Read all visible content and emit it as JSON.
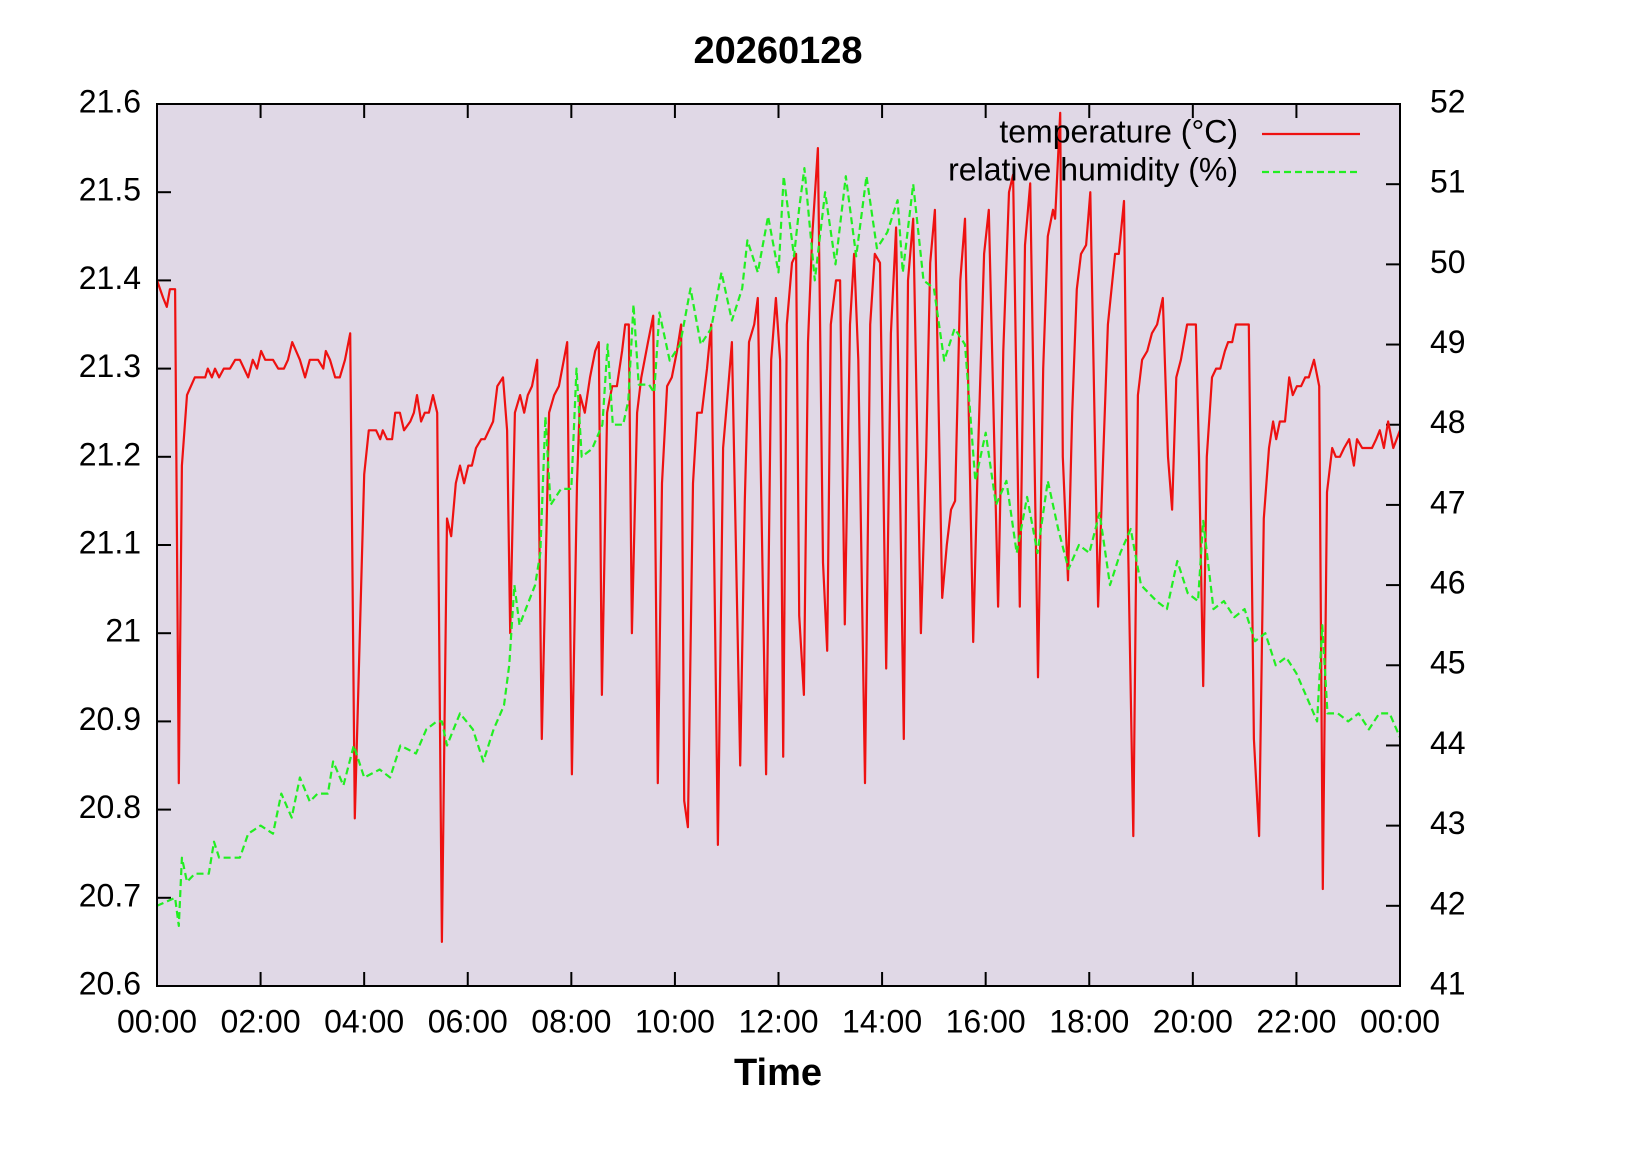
{
  "chart_data": {
    "type": "line",
    "title": "20260128",
    "x_label": "Time",
    "xlim": [
      0,
      24
    ],
    "xticks": [
      {
        "value": 0,
        "label": "00:00"
      },
      {
        "value": 2,
        "label": "02:00"
      },
      {
        "value": 4,
        "label": "04:00"
      },
      {
        "value": 6,
        "label": "06:00"
      },
      {
        "value": 8,
        "label": "08:00"
      },
      {
        "value": 10,
        "label": "10:00"
      },
      {
        "value": 12,
        "label": "12:00"
      },
      {
        "value": 14,
        "label": "14:00"
      },
      {
        "value": 16,
        "label": "16:00"
      },
      {
        "value": 18,
        "label": "18:00"
      },
      {
        "value": 20,
        "label": "20:00"
      },
      {
        "value": 22,
        "label": "22:00"
      },
      {
        "value": 24,
        "label": "00:00"
      }
    ],
    "ylim": [
      20.6,
      21.6
    ],
    "yticks": [
      20.6,
      20.7,
      20.8,
      20.9,
      21,
      21.1,
      21.2,
      21.3,
      21.4,
      21.5,
      21.6
    ],
    "y2lim": [
      41,
      52
    ],
    "y2ticks": [
      41,
      42,
      43,
      44,
      45,
      46,
      47,
      48,
      49,
      50,
      51,
      52
    ],
    "legend": "upper right",
    "background": "#e0d8e6",
    "series": [
      {
        "name": "temperature (°C)",
        "color": "#ee1111",
        "dash": false,
        "axis": "y",
        "x": [
          0,
          0.12,
          0.19,
          0.25,
          0.35,
          0.42,
          0.48,
          0.58,
          0.73,
          0.93,
          0.98,
          1.06,
          1.12,
          1.2,
          1.29,
          1.41,
          1.51,
          1.6,
          1.76,
          1.85,
          1.93,
          2.01,
          2.09,
          2.24,
          2.34,
          2.45,
          2.53,
          2.61,
          2.76,
          2.86,
          2.95,
          3.11,
          3.21,
          3.26,
          3.34,
          3.44,
          3.53,
          3.63,
          3.73,
          3.82,
          4,
          4.09,
          4.23,
          4.31,
          4.36,
          4.44,
          4.54,
          4.6,
          4.69,
          4.77,
          4.89,
          4.96,
          5.02,
          5.1,
          5.17,
          5.25,
          5.33,
          5.41,
          5.5,
          5.6,
          5.68,
          5.77,
          5.85,
          5.93,
          6.01,
          6.08,
          6.16,
          6.26,
          6.33,
          6.41,
          6.49,
          6.57,
          6.68,
          6.76,
          6.82,
          6.91,
          7.01,
          7.09,
          7.16,
          7.24,
          7.34,
          7.43,
          7.57,
          7.67,
          7.76,
          7.92,
          8.01,
          8.11,
          8.17,
          8.26,
          8.36,
          8.46,
          8.53,
          8.59,
          8.69,
          8.79,
          8.88,
          8.98,
          9.04,
          9.11,
          9.17,
          9.27,
          9.35,
          9.48,
          9.58,
          9.67,
          9.75,
          9.85,
          9.94,
          10.04,
          10.12,
          10.18,
          10.25,
          10.35,
          10.43,
          10.52,
          10.62,
          10.7,
          10.83,
          10.93,
          11.03,
          11.1,
          11.26,
          11.35,
          11.43,
          11.53,
          11.6,
          11.76,
          11.86,
          11.95,
          12.03,
          12.09,
          12.16,
          12.26,
          12.34,
          12.4,
          12.49,
          12.57,
          12.65,
          12.76,
          12.86,
          12.94,
          13.01,
          13.11,
          13.19,
          13.28,
          13.38,
          13.46,
          13.54,
          13.67,
          13.77,
          13.86,
          13.96,
          14.08,
          14.17,
          14.27,
          14.42,
          14.5,
          14.6,
          14.75,
          14.85,
          14.93,
          15.02,
          15.16,
          15.25,
          15.33,
          15.41,
          15.51,
          15.6,
          15.76,
          15.85,
          15.97,
          16.06,
          16.24,
          16.34,
          16.45,
          16.53,
          16.66,
          16.76,
          16.86,
          17.01,
          17.11,
          17.2,
          17.3,
          17.34,
          17.44,
          17.49,
          17.59,
          17.67,
          17.76,
          17.84,
          17.94,
          18.02,
          18.17,
          18.27,
          18.36,
          18.5,
          18.57,
          18.67,
          18.75,
          18.85,
          18.94,
          19.02,
          19.12,
          19.21,
          19.31,
          19.42,
          19.52,
          19.6,
          19.68,
          19.77,
          19.89,
          20.06,
          20.12,
          20.2,
          20.27,
          20.37,
          20.45,
          20.53,
          20.62,
          20.68,
          20.76,
          20.83,
          21.08,
          21.18,
          21.28,
          21.37,
          21.47,
          21.55,
          21.61,
          21.68,
          21.78,
          21.86,
          21.93,
          22.01,
          22.09,
          22.17,
          22.24,
          22.34,
          22.44,
          22.51,
          22.59,
          22.69,
          22.76,
          22.84,
          22.92,
          23.02,
          23.11,
          23.17,
          23.27,
          23.46,
          23.54,
          23.61,
          23.69,
          23.77,
          23.87,
          24
        ],
        "values": [
          21.4,
          21.38,
          21.37,
          21.39,
          21.39,
          20.83,
          21.19,
          21.27,
          21.29,
          21.29,
          21.3,
          21.29,
          21.3,
          21.29,
          21.3,
          21.3,
          21.31,
          21.31,
          21.29,
          21.31,
          21.3,
          21.32,
          21.31,
          21.31,
          21.3,
          21.3,
          21.31,
          21.33,
          21.31,
          21.29,
          21.31,
          21.31,
          21.3,
          21.32,
          21.31,
          21.29,
          21.29,
          21.31,
          21.34,
          20.79,
          21.18,
          21.23,
          21.23,
          21.22,
          21.23,
          21.22,
          21.22,
          21.25,
          21.25,
          21.23,
          21.24,
          21.25,
          21.27,
          21.24,
          21.25,
          21.25,
          21.27,
          21.25,
          20.65,
          21.13,
          21.11,
          21.17,
          21.19,
          21.17,
          21.19,
          21.19,
          21.21,
          21.22,
          21.22,
          21.23,
          21.24,
          21.28,
          21.29,
          21.23,
          21.0,
          21.25,
          21.27,
          21.25,
          21.27,
          21.28,
          21.31,
          20.88,
          21.25,
          21.27,
          21.28,
          21.33,
          20.84,
          21.17,
          21.27,
          21.25,
          21.29,
          21.32,
          21.33,
          20.93,
          21.25,
          21.28,
          21.28,
          21.32,
          21.35,
          21.35,
          21.0,
          21.25,
          21.29,
          21.33,
          21.36,
          20.83,
          21.17,
          21.28,
          21.29,
          21.32,
          21.35,
          20.81,
          20.78,
          21.17,
          21.25,
          21.25,
          21.3,
          21.35,
          20.76,
          21.21,
          21.28,
          21.33,
          20.85,
          21.15,
          21.33,
          21.35,
          21.38,
          20.84,
          21.31,
          21.38,
          21.31,
          20.86,
          21.35,
          21.42,
          21.43,
          21.02,
          20.93,
          21.33,
          21.45,
          21.55,
          21.08,
          20.98,
          21.35,
          21.4,
          21.4,
          21.01,
          21.35,
          21.43,
          21.31,
          20.83,
          21.35,
          21.43,
          21.42,
          20.96,
          21.34,
          21.46,
          20.88,
          21.4,
          21.47,
          21.0,
          21.2,
          21.42,
          21.48,
          21.04,
          21.1,
          21.14,
          21.15,
          21.4,
          21.47,
          20.99,
          21.2,
          21.43,
          21.48,
          21.03,
          21.32,
          21.5,
          21.52,
          21.03,
          21.44,
          21.51,
          20.95,
          21.3,
          21.45,
          21.48,
          21.47,
          21.59,
          21.2,
          21.06,
          21.25,
          21.39,
          21.43,
          21.44,
          21.5,
          21.03,
          21.2,
          21.35,
          21.43,
          21.43,
          21.49,
          21.1,
          20.77,
          21.27,
          21.31,
          21.32,
          21.34,
          21.35,
          21.38,
          21.2,
          21.14,
          21.29,
          21.31,
          21.35,
          21.35,
          21.2,
          20.94,
          21.2,
          21.29,
          21.3,
          21.3,
          21.32,
          21.33,
          21.33,
          21.35,
          21.35,
          20.88,
          20.77,
          21.13,
          21.21,
          21.24,
          21.22,
          21.24,
          21.24,
          21.29,
          21.27,
          21.28,
          21.28,
          21.29,
          21.29,
          21.31,
          21.28,
          20.71,
          21.16,
          21.21,
          21.2,
          21.2,
          21.21,
          21.22,
          21.19,
          21.22,
          21.21,
          21.21,
          21.22,
          21.23,
          21.21,
          21.24,
          21.21,
          21.23
        ]
      },
      {
        "name": "relative humidity (%)",
        "color": "#22ee22",
        "dash": true,
        "axis": "y2",
        "x": [
          0,
          0.35,
          0.42,
          0.48,
          0.58,
          0.73,
          1,
          1.1,
          1.2,
          1.6,
          1.76,
          2,
          2.24,
          2.4,
          2.6,
          2.76,
          2.95,
          3.1,
          3.3,
          3.4,
          3.6,
          3.8,
          4,
          4.3,
          4.5,
          4.7,
          5,
          5.2,
          5.4,
          5.5,
          5.6,
          5.85,
          6.1,
          6.3,
          6.5,
          6.7,
          6.8,
          6.9,
          7,
          7.3,
          7.4,
          7.5,
          7.6,
          7.8,
          8,
          8.1,
          8.2,
          8.4,
          8.6,
          8.7,
          8.8,
          9,
          9.1,
          9.2,
          9.3,
          9.5,
          9.6,
          9.7,
          9.9,
          10.1,
          10.3,
          10.5,
          10.7,
          10.9,
          11.1,
          11.3,
          11.4,
          11.6,
          11.8,
          12,
          12.1,
          12.3,
          12.4,
          12.5,
          12.7,
          12.9,
          13.1,
          13.3,
          13.5,
          13.7,
          13.9,
          14.1,
          14.3,
          14.4,
          14.6,
          14.8,
          15,
          15.2,
          15.4,
          15.6,
          15.8,
          16,
          16.2,
          16.4,
          16.6,
          16.8,
          17,
          17.2,
          17.4,
          17.6,
          17.8,
          18,
          18.2,
          18.4,
          18.6,
          18.8,
          19,
          19.3,
          19.5,
          19.7,
          19.9,
          20.1,
          20.2,
          20.4,
          20.6,
          20.8,
          21,
          21.2,
          21.4,
          21.6,
          21.8,
          22,
          22.2,
          22.4,
          22.5,
          22.6,
          22.8,
          23,
          23.2,
          23.4,
          23.6,
          23.8,
          24
        ],
        "values": [
          42.0,
          42.1,
          41.75,
          42.6,
          42.3,
          42.4,
          42.4,
          42.8,
          42.6,
          42.6,
          42.9,
          43.0,
          42.9,
          43.4,
          43.1,
          43.6,
          43.3,
          43.4,
          43.4,
          43.8,
          43.5,
          44.0,
          43.6,
          43.7,
          43.6,
          44.0,
          43.9,
          44.2,
          44.3,
          44.3,
          44.0,
          44.4,
          44.2,
          43.8,
          44.2,
          44.5,
          45.0,
          46.0,
          45.5,
          46.0,
          46.4,
          48.1,
          47.0,
          47.2,
          47.2,
          48.7,
          47.6,
          47.7,
          48.0,
          49.0,
          48.0,
          48.0,
          48.3,
          49.5,
          48.5,
          48.5,
          48.4,
          49.4,
          48.8,
          49.0,
          49.7,
          49.0,
          49.2,
          49.9,
          49.3,
          49.7,
          50.3,
          49.9,
          50.6,
          49.9,
          51.1,
          50.1,
          50.7,
          51.2,
          49.8,
          50.9,
          50.0,
          51.1,
          50.1,
          51.1,
          50.2,
          50.4,
          50.8,
          49.9,
          51.0,
          49.8,
          49.7,
          48.8,
          49.2,
          49.0,
          47.3,
          47.9,
          47.0,
          47.3,
          46.4,
          47.1,
          46.4,
          47.3,
          46.7,
          46.2,
          46.5,
          46.4,
          46.9,
          46.0,
          46.4,
          46.7,
          46.0,
          45.8,
          45.7,
          46.3,
          45.9,
          45.8,
          46.8,
          45.7,
          45.8,
          45.6,
          45.7,
          45.3,
          45.4,
          45.0,
          45.1,
          44.9,
          44.6,
          44.3,
          45.5,
          44.4,
          44.4,
          44.3,
          44.4,
          44.2,
          44.4,
          44.4,
          44.1
        ]
      }
    ]
  }
}
